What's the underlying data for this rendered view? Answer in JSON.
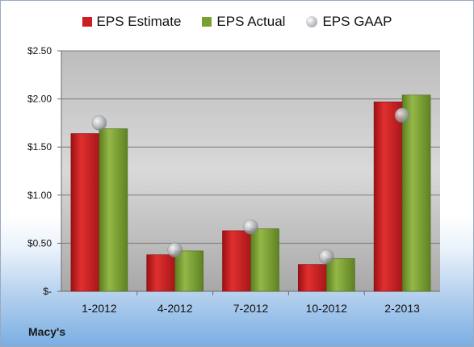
{
  "legend": {
    "estimate": "EPS Estimate",
    "actual": "EPS Actual",
    "gaap": "EPS GAAP"
  },
  "company": "Macy's",
  "colors": {
    "estimate": "#cc1e22",
    "actual": "#7aa030",
    "gaap": "#a9adb3"
  },
  "chart_data": {
    "type": "bar",
    "categories": [
      "1-2012",
      "4-2012",
      "7-2012",
      "10-2012",
      "2-2013"
    ],
    "series": [
      {
        "name": "EPS Estimate",
        "values": [
          1.64,
          0.38,
          0.63,
          0.28,
          1.97
        ]
      },
      {
        "name": "EPS Actual",
        "values": [
          1.69,
          0.42,
          0.65,
          0.34,
          2.04
        ]
      },
      {
        "name": "EPS GAAP",
        "values": [
          1.75,
          0.43,
          0.67,
          0.36,
          1.83
        ]
      }
    ],
    "y_ticks": [
      "$-",
      "$0.50",
      "$1.00",
      "$1.50",
      "$2.00",
      "$2.50"
    ],
    "ylim": [
      0,
      2.5
    ],
    "grid": true,
    "legend_position": "top"
  }
}
